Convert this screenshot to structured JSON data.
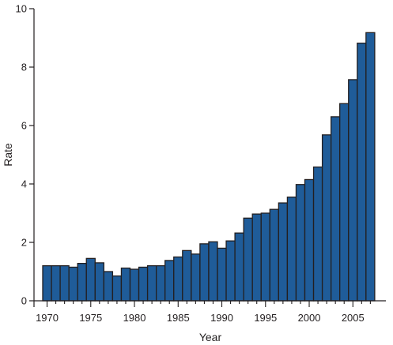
{
  "chart_data": {
    "type": "bar",
    "title": "",
    "xlabel": "Year",
    "ylabel": "Rate",
    "ylim": [
      0,
      10
    ],
    "yticks": [
      "0",
      "2",
      "4",
      "6",
      "8",
      "10"
    ],
    "xticks": [
      "1970",
      "1975",
      "1980",
      "1985",
      "1990",
      "1995",
      "2000",
      "2005"
    ],
    "grid": false,
    "bar_color": "#1f5c99",
    "bar_edge_color": "#231f20",
    "categories": [
      "1970",
      "1971",
      "1972",
      "1973",
      "1974",
      "1975",
      "1976",
      "1977",
      "1978",
      "1979",
      "1980",
      "1981",
      "1982",
      "1983",
      "1984",
      "1985",
      "1986",
      "1987",
      "1988",
      "1989",
      "1990",
      "1991",
      "1992",
      "1993",
      "1994",
      "1995",
      "1996",
      "1997",
      "1998",
      "1999",
      "2000",
      "2001",
      "2002",
      "2003",
      "2004",
      "2005",
      "2006",
      "2007"
    ],
    "values": [
      1.2,
      1.2,
      1.2,
      1.15,
      1.28,
      1.45,
      1.3,
      1.0,
      0.85,
      1.12,
      1.08,
      1.15,
      1.2,
      1.2,
      1.38,
      1.5,
      1.72,
      1.6,
      1.95,
      2.02,
      1.8,
      2.05,
      2.32,
      2.83,
      2.97,
      3.0,
      3.13,
      3.35,
      3.55,
      3.98,
      4.15,
      4.58,
      5.68,
      6.3,
      6.75,
      7.57,
      8.82,
      9.18
    ]
  }
}
